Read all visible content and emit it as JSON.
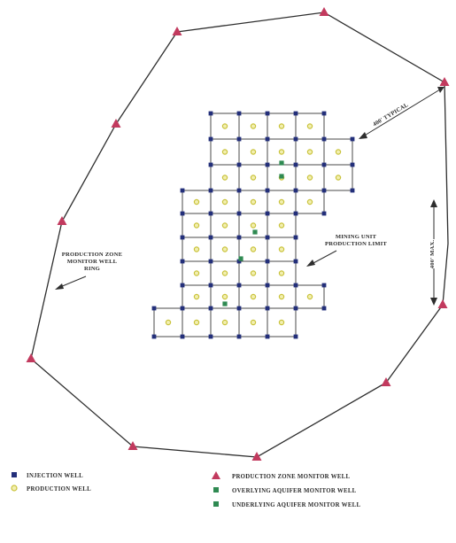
{
  "colors": {
    "line": "#2e2e2e",
    "grid": "#4a4a4a",
    "injection": "#232f7a",
    "production": "#c9c23a",
    "production_fill": "#f2efb0",
    "monitor_triangle": "#c23a5e",
    "overlying": "#2f8a52",
    "underlying": "#2f8a52"
  },
  "annotations": {
    "production_zone_ring": [
      "PRODUCTION ZONE",
      "MONITOR WELL",
      "RING"
    ],
    "mining_limit": [
      "MINING UNIT",
      "PRODUCTION LIMIT"
    ],
    "distance_top": "400' TYPICAL",
    "distance_right": "400' MAX."
  },
  "legend": {
    "injection_well": "INJECTION WELL",
    "production_well": "PRODUCTION WELL",
    "production_zone_monitor_well": "PRODUCTION ZONE MONITOR WELL",
    "overlying_aquifer_monitor_well": "OVERLYING AQUIFER MONITOR WELL",
    "underlying_aquifer_monitor_well": "UNDERLYING AQUIFER MONITOR WELL"
  },
  "icons": {
    "injection": "square-marker",
    "production": "circle-marker",
    "monitor": "triangle-marker",
    "overlying": "square-marker-green",
    "underlying": "square-marker-green"
  }
}
